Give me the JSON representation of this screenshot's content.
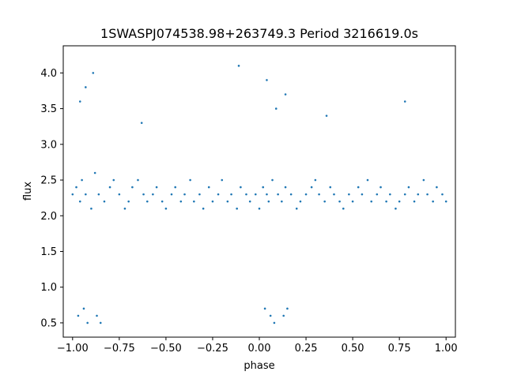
{
  "chart_data": {
    "type": "scatter",
    "title": "1SWASPJ074538.98+263749.3 Period 3216619.0s",
    "xlabel": "phase",
    "ylabel": "flux",
    "xlim": [
      -1.05,
      1.05
    ],
    "ylim": [
      0.3,
      4.38
    ],
    "x_ticks": [
      -1.0,
      -0.75,
      -0.5,
      -0.25,
      0.0,
      0.25,
      0.5,
      0.75,
      1.0
    ],
    "x_tick_labels": [
      "−1.00",
      "−0.75",
      "−0.50",
      "−0.25",
      "0.00",
      "0.25",
      "0.50",
      "0.75",
      "1.00"
    ],
    "y_ticks": [
      0.5,
      1.0,
      1.5,
      2.0,
      2.5,
      3.0,
      3.5,
      4.0
    ],
    "y_tick_labels": [
      "0.5",
      "1.0",
      "1.5",
      "2.0",
      "2.5",
      "3.0",
      "3.5",
      "4.0"
    ],
    "grid": false,
    "legend": "none",
    "marker_color": "#1f77b4",
    "series": [
      {
        "x": [
          -1.0,
          -0.98,
          -0.96,
          -0.95,
          -0.93,
          -0.9,
          -0.88,
          -0.86,
          -0.83,
          -0.8,
          -0.78,
          -0.75,
          -0.72,
          -0.7,
          -0.68,
          -0.65,
          -0.62,
          -0.6,
          -0.57,
          -0.55,
          -0.52,
          -0.5,
          -0.47,
          -0.45,
          -0.42,
          -0.4,
          -0.37,
          -0.35,
          -0.32,
          -0.3,
          -0.27,
          -0.25,
          -0.22,
          -0.2,
          -0.17,
          -0.15,
          -0.12,
          -0.1,
          -0.07,
          -0.05,
          -0.02,
          0.0,
          0.02,
          0.04,
          0.05,
          0.07,
          0.1,
          0.12,
          0.14,
          0.17,
          0.2,
          0.22,
          0.25,
          0.28,
          0.3,
          0.32,
          0.35,
          0.38,
          0.4,
          0.43,
          0.45,
          0.48,
          0.5,
          0.53,
          0.55,
          0.58,
          0.6,
          0.63,
          0.65,
          0.68,
          0.7,
          0.73,
          0.75,
          0.78,
          0.8,
          0.83,
          0.85,
          0.88,
          0.9,
          0.93,
          0.95,
          0.98,
          1.0,
          -0.97,
          -0.94,
          -0.92,
          -0.87,
          -0.85,
          0.03,
          0.06,
          0.08,
          0.13,
          0.15,
          -0.96,
          -0.93,
          -0.89,
          0.04,
          0.09,
          0.14,
          -0.11,
          0.78,
          -0.63,
          0.36
        ],
        "y": [
          2.3,
          2.4,
          2.2,
          2.5,
          2.3,
          2.1,
          2.6,
          2.3,
          2.2,
          2.4,
          2.5,
          2.3,
          2.1,
          2.2,
          2.4,
          2.5,
          2.3,
          2.2,
          2.3,
          2.4,
          2.2,
          2.1,
          2.3,
          2.4,
          2.2,
          2.3,
          2.5,
          2.2,
          2.3,
          2.1,
          2.4,
          2.2,
          2.3,
          2.5,
          2.2,
          2.3,
          2.1,
          2.4,
          2.3,
          2.2,
          2.3,
          2.1,
          2.4,
          2.3,
          2.2,
          2.5,
          2.3,
          2.2,
          2.4,
          2.3,
          2.1,
          2.2,
          2.3,
          2.4,
          2.5,
          2.3,
          2.2,
          2.4,
          2.3,
          2.2,
          2.1,
          2.3,
          2.2,
          2.4,
          2.3,
          2.5,
          2.2,
          2.3,
          2.4,
          2.2,
          2.3,
          2.1,
          2.2,
          2.3,
          2.4,
          2.2,
          2.3,
          2.5,
          2.3,
          2.2,
          2.4,
          2.3,
          2.2,
          0.6,
          0.7,
          0.5,
          0.6,
          0.5,
          0.7,
          0.6,
          0.5,
          0.6,
          0.7,
          3.6,
          3.8,
          4.0,
          3.9,
          3.5,
          3.7,
          4.1,
          3.6,
          3.3,
          3.4
        ]
      }
    ]
  }
}
